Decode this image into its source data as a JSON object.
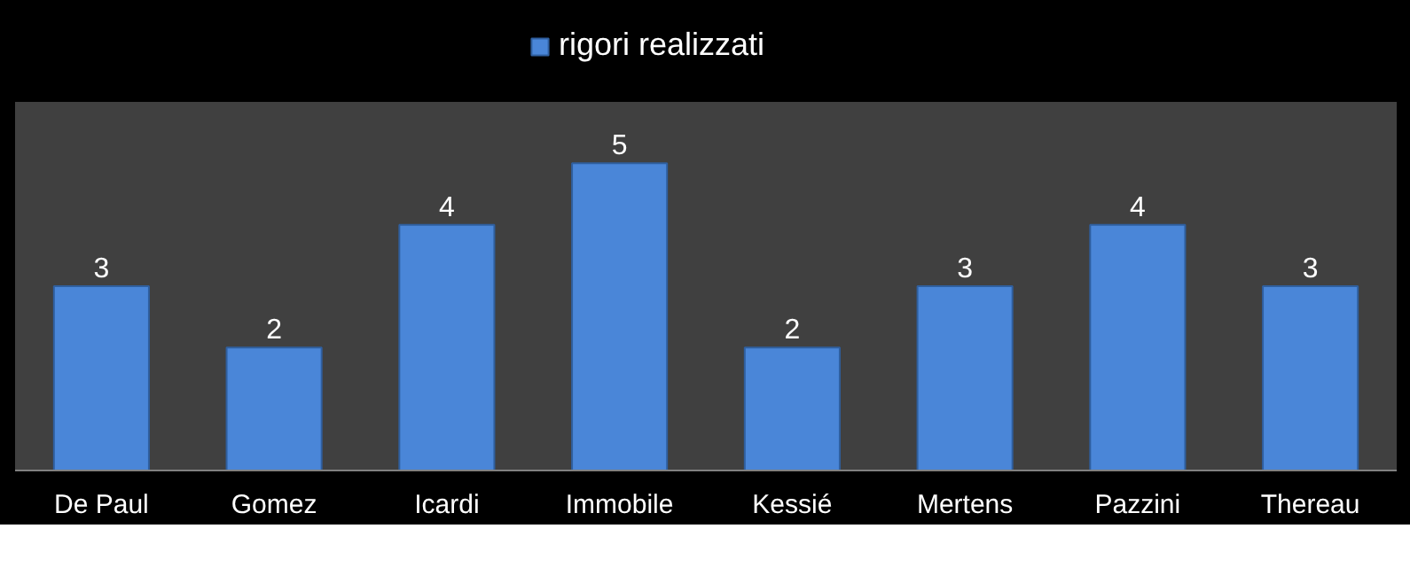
{
  "chart_data": {
    "type": "bar",
    "categories": [
      "De Paul",
      "Gomez",
      "Icardi",
      "Immobile",
      "Kessié",
      "Mertens",
      "Pazzini",
      "Thereau"
    ],
    "series": [
      {
        "name": "rigori realizzati",
        "color": "#4a86d8",
        "values": [
          3,
          2,
          4,
          5,
          2,
          3,
          4,
          3
        ]
      }
    ],
    "ylim": [
      0,
      6
    ],
    "data_labels": true,
    "legend": "top",
    "grid": false,
    "tick_labels": "x"
  }
}
